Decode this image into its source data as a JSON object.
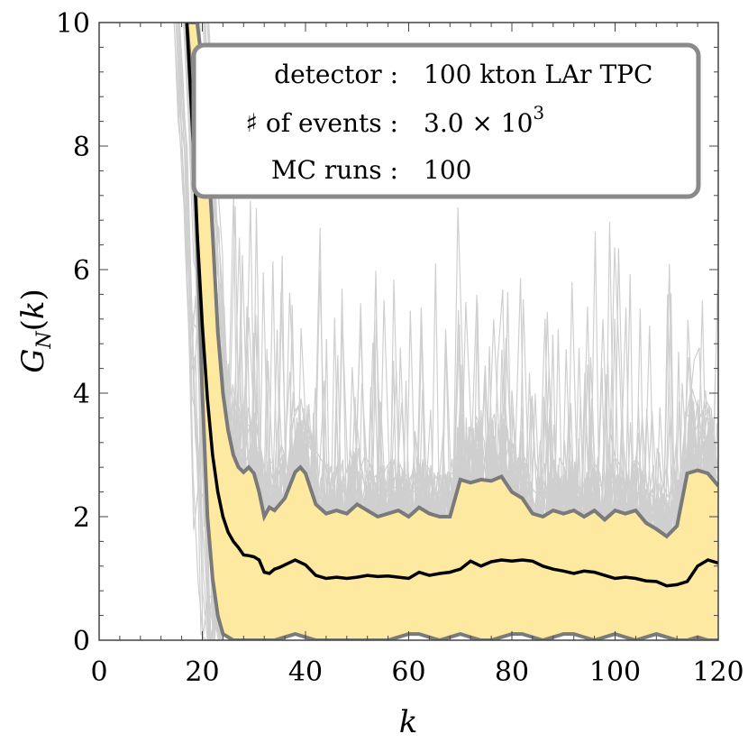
{
  "chart_data": {
    "type": "line",
    "title": "",
    "xlabel": "k",
    "ylabel": "G_N(k)",
    "xlim": [
      0,
      120
    ],
    "ylim": [
      0,
      10
    ],
    "x_ticks": [
      0,
      20,
      40,
      60,
      80,
      100,
      120
    ],
    "y_ticks": [
      0,
      2,
      4,
      6,
      8,
      10
    ],
    "grid": false,
    "legend_position": "top-right",
    "legend": {
      "rows": [
        {
          "key": "detector :",
          "value": "100 kton LAr TPC"
        },
        {
          "key": "♯ of events :",
          "value": "3.0 × 10^3",
          "value_base": "3.0 × 10",
          "value_exp": "3"
        },
        {
          "key": "MC runs :",
          "value": "100"
        }
      ]
    },
    "colors": {
      "band_fill": "#fde9a0",
      "band_edge": "#7a7a7a",
      "median": "#000000",
      "mc_runs": "#cfcfcf"
    },
    "series": [
      {
        "role": "median",
        "x": [
          17,
          18,
          19,
          20,
          21,
          22,
          23,
          24,
          25,
          26,
          27,
          28,
          29,
          30,
          31,
          32,
          33,
          34,
          35,
          36,
          38,
          40,
          42,
          44,
          46,
          48,
          50,
          52,
          54,
          56,
          58,
          60,
          62,
          64,
          66,
          68,
          70,
          72,
          74,
          76,
          78,
          80,
          82,
          84,
          86,
          88,
          90,
          92,
          94,
          96,
          98,
          100,
          102,
          104,
          106,
          108,
          110,
          112,
          114,
          116,
          118,
          120
        ],
        "y": [
          10,
          8.4,
          6.6,
          5.1,
          3.9,
          3.0,
          2.4,
          2.0,
          1.75,
          1.6,
          1.5,
          1.38,
          1.37,
          1.35,
          1.3,
          1.1,
          1.08,
          1.15,
          1.18,
          1.22,
          1.3,
          1.22,
          1.05,
          1.0,
          1.02,
          1.0,
          1.02,
          1.05,
          1.03,
          1.04,
          1.02,
          1.0,
          1.1,
          1.05,
          1.08,
          1.1,
          1.15,
          1.28,
          1.2,
          1.27,
          1.3,
          1.28,
          1.3,
          1.28,
          1.2,
          1.15,
          1.12,
          1.08,
          1.12,
          1.1,
          1.05,
          1.0,
          1.02,
          1.0,
          0.96,
          0.95,
          0.88,
          0.9,
          0.95,
          1.2,
          1.3,
          1.25
        ]
      },
      {
        "role": "band-upper",
        "x": [
          17,
          18,
          19,
          20,
          21,
          22,
          23,
          24,
          25,
          26,
          27,
          28,
          29,
          30,
          31,
          32,
          33,
          34,
          36,
          38,
          39,
          40,
          42,
          44,
          46,
          48,
          50,
          52,
          54,
          56,
          58,
          60,
          62,
          64,
          66,
          68,
          70,
          72,
          74,
          76,
          78,
          80,
          82,
          84,
          86,
          88,
          90,
          92,
          94,
          96,
          98,
          100,
          102,
          104,
          106,
          108,
          110,
          112,
          114,
          116,
          118,
          120
        ],
        "y": [
          10,
          10,
          10,
          9.3,
          8.0,
          6.6,
          5.0,
          4.0,
          3.4,
          3.0,
          2.8,
          2.72,
          2.8,
          2.7,
          2.4,
          2.0,
          2.15,
          2.1,
          2.3,
          2.72,
          2.8,
          2.7,
          2.2,
          2.05,
          2.1,
          2.05,
          2.2,
          2.1,
          2.0,
          2.05,
          2.1,
          2.0,
          2.15,
          2.05,
          2.0,
          2.0,
          2.6,
          2.55,
          2.6,
          2.58,
          2.65,
          2.4,
          2.3,
          2.05,
          2.0,
          2.1,
          2.05,
          2.1,
          2.0,
          2.1,
          1.95,
          2.1,
          2.05,
          2.1,
          1.9,
          1.8,
          1.68,
          1.85,
          2.7,
          2.75,
          2.7,
          2.5
        ]
      },
      {
        "role": "band-lower",
        "x": [
          17,
          18,
          19,
          20,
          21,
          22,
          23,
          24,
          26,
          28,
          30,
          32,
          34,
          36,
          38,
          40,
          42,
          44,
          46,
          48,
          50,
          52,
          54,
          56,
          58,
          60,
          62,
          64,
          66,
          68,
          70,
          72,
          74,
          76,
          78,
          80,
          82,
          84,
          86,
          88,
          90,
          92,
          94,
          96,
          98,
          100,
          102,
          104,
          106,
          108,
          110,
          112,
          114,
          116,
          118,
          120
        ],
        "y": [
          10,
          9.0,
          6.5,
          4.0,
          2.0,
          1.0,
          0.4,
          0.1,
          0.0,
          0.0,
          0.0,
          0.0,
          0.0,
          0.05,
          0.1,
          0.05,
          0.0,
          0.0,
          0.0,
          0.0,
          0.0,
          0.0,
          0.0,
          0.0,
          0.05,
          0.1,
          0.1,
          0.05,
          0.0,
          0.05,
          0.1,
          0.05,
          0.0,
          0.0,
          0.05,
          0.1,
          0.1,
          0.05,
          0.0,
          0.05,
          0.1,
          0.1,
          0.05,
          0.0,
          0.05,
          0.1,
          0.05,
          0.0,
          0.05,
          0.1,
          0.05,
          0.0,
          0.0,
          0.05,
          0.0,
          0.0
        ]
      }
    ]
  }
}
